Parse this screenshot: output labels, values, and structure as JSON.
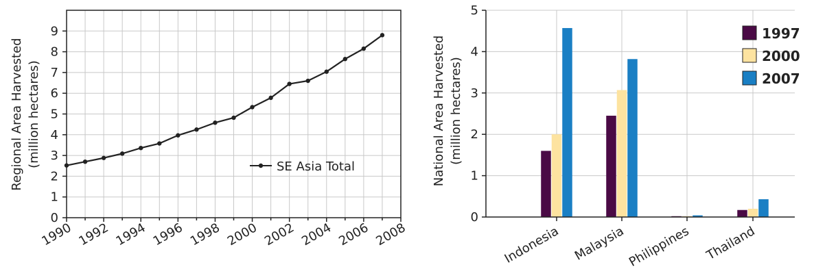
{
  "chart_data": [
    {
      "type": "line",
      "title": "",
      "xlabel": "",
      "ylabel": [
        "Regional Area Harvested",
        "(million hectares)"
      ],
      "xlim": [
        1990,
        2008
      ],
      "ylim": [
        0,
        10
      ],
      "x_ticks": [
        1990,
        1992,
        1994,
        1996,
        1998,
        2000,
        2002,
        2004,
        2006,
        2008
      ],
      "y_ticks": [
        0,
        1,
        2,
        3,
        4,
        5,
        6,
        7,
        8,
        9
      ],
      "grid": true,
      "legend_position": "bottom-right",
      "colors": {
        "line": "#222222"
      },
      "series": [
        {
          "name": "SE Asia Total",
          "x": [
            1990,
            1991,
            1992,
            1993,
            1994,
            1995,
            1996,
            1997,
            1998,
            1999,
            2000,
            2001,
            2002,
            2003,
            2004,
            2005,
            2006,
            2007
          ],
          "values": [
            2.52,
            2.7,
            2.88,
            3.09,
            3.36,
            3.58,
            3.97,
            4.25,
            4.58,
            4.82,
            5.33,
            5.78,
            6.45,
            6.6,
            7.04,
            7.65,
            8.15,
            8.8
          ]
        }
      ]
    },
    {
      "type": "bar",
      "title": "",
      "xlabel": "",
      "ylabel": [
        "National Area Harvested",
        "(million hectares)"
      ],
      "ylim": [
        0,
        5
      ],
      "y_ticks": [
        0,
        1,
        2,
        3,
        4,
        5
      ],
      "grid": true,
      "legend_position": "top-right",
      "categories": [
        "Indonesia",
        "Malaysia",
        "Philippines",
        "Thailand"
      ],
      "series": [
        {
          "name": "1997",
          "color": "#4a0a45",
          "values": [
            1.6,
            2.45,
            0.02,
            0.17
          ]
        },
        {
          "name": "2000",
          "color": "#fde3a0",
          "values": [
            2.0,
            3.07,
            0.02,
            0.2
          ]
        },
        {
          "name": "2007",
          "color": "#1a7fc4",
          "values": [
            4.57,
            3.82,
            0.04,
            0.43
          ]
        }
      ]
    }
  ]
}
